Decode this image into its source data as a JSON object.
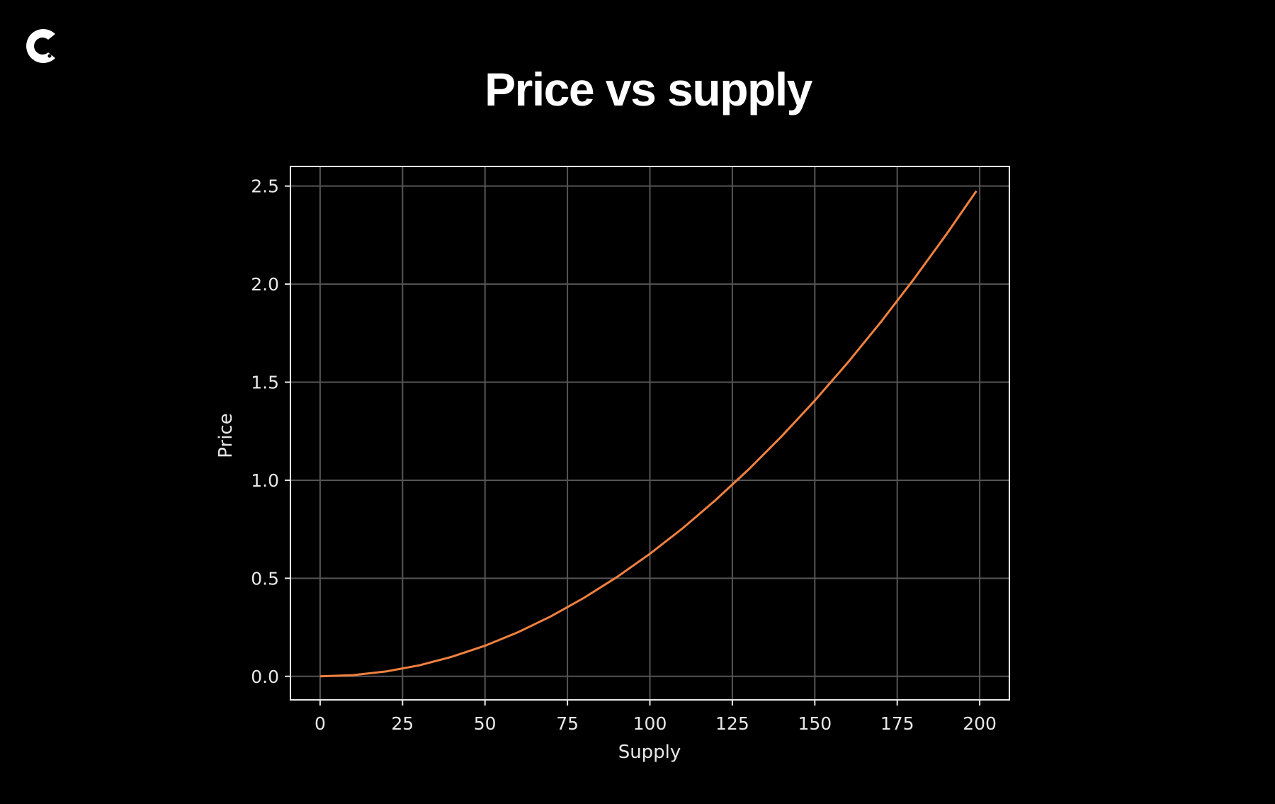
{
  "logo": {
    "icon": "c-logo-icon",
    "color": "#ffffff"
  },
  "chart_data": {
    "type": "line",
    "title": "Price vs supply",
    "xlabel": "Supply",
    "ylabel": "Price",
    "xlim": [
      -9,
      209
    ],
    "ylim": [
      -0.12,
      2.6
    ],
    "xticks": [
      "0",
      "25",
      "50",
      "75",
      "100",
      "125",
      "150",
      "175",
      "200"
    ],
    "yticks": [
      "0.0",
      "0.5",
      "1.0",
      "1.5",
      "2.0",
      "2.5"
    ],
    "grid": true,
    "colors": {
      "background": "#000000",
      "line": "#f0813f",
      "grid": "#555555",
      "axes": "#e8e8e8"
    },
    "series": [
      {
        "x": [
          0,
          10,
          20,
          30,
          40,
          50,
          60,
          70,
          80,
          90,
          100,
          110,
          120,
          130,
          140,
          150,
          160,
          170,
          180,
          190,
          199
        ],
        "y": [
          0,
          0.006,
          0.025,
          0.056,
          0.1,
          0.156,
          0.225,
          0.306,
          0.4,
          0.506,
          0.625,
          0.756,
          0.9,
          1.056,
          1.225,
          1.406,
          1.6,
          1.806,
          2.025,
          2.256,
          2.475
        ]
      }
    ]
  }
}
